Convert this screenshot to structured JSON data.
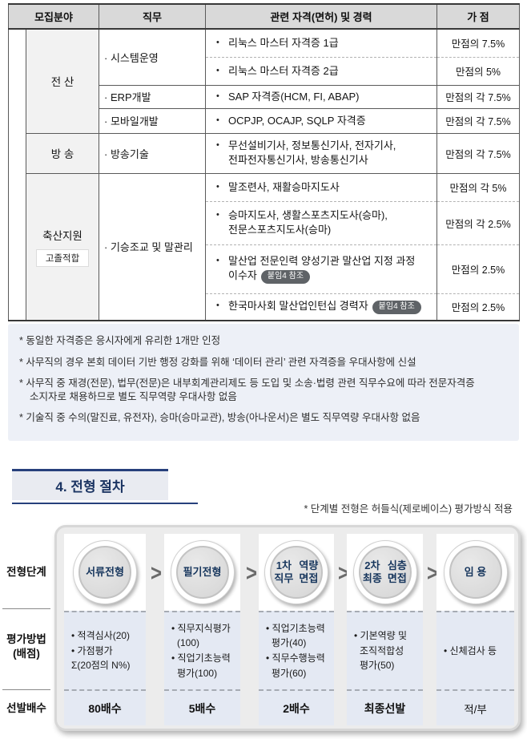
{
  "ui": {
    "bullet": "•",
    "arrow": ">"
  },
  "recruit_table": {
    "headers": [
      "모집분야",
      "직무",
      "관련 자격(면허) 및 경력",
      "가 점"
    ],
    "rows": [
      {
        "category": "전 산",
        "duty": "· 시스템운영",
        "qual": "리눅스 마스터 자격증 1급",
        "bonus": "만점의 7.5%"
      },
      {
        "qual": "리눅스 마스터 자격증 2급",
        "bonus": "만점의 5%"
      },
      {
        "duty": "· ERP개발",
        "qual": "SAP 자격증(HCM, FI, ABAP)",
        "bonus": "만점의 각 7.5%"
      },
      {
        "duty": "· 모바일개발",
        "qual": "OCPJP, OCAJP, SQLP 자격증",
        "bonus": "만점의 각 7.5%"
      },
      {
        "category": "방 송",
        "duty": "· 방송기술",
        "qual": "무선설비기사, 정보통신기사, 전자기사, 전파전자통신기사, 방송통신기사",
        "bonus": "만점의 각 7.5%"
      },
      {
        "category": "축산지원",
        "category_badge": "고졸적합",
        "duty": "· 기승조교 및 말관리",
        "qual": "말조련사, 재활승마지도사",
        "bonus": "만점의 각 5%"
      },
      {
        "qual": "승마지도사, 생활스포츠지도사(승마), 전문스포츠지도사(승마)",
        "bonus": "만점의 각 2.5%"
      },
      {
        "qual": "말산업 전문인력 양성기관 말산업 지정 과정 이수자",
        "qual_badge": "붙임4 참조",
        "bonus": "만점의 2.5%"
      },
      {
        "qual": "한국마사회 말산업인턴십 경력자",
        "qual_badge": "붙임4 참조",
        "bonus": "만점의 2.5%"
      }
    ]
  },
  "notes": {
    "items": [
      "* 동일한 자격증은 응시자에게 유리한 1개만 인정",
      "* 사무직의 경우 본회 데이터 기반 행정 강화를 위해 ‘데이터 관리’ 관련 자격증을 우대사항에 신설",
      "* 사무직 중 재경(전문), 법무(전문)은 내부회계관리제도 등 도입 및 소송·법령 관련 직무수요에 따라 전문자격증 소지자로 채용하므로 별도 직무역량 우대사항 없음",
      "* 기술직 중 수의(말진료, 유전자), 승마(승마교관), 방송(아나운서)은 별도 직무역량 우대사항 없음"
    ]
  },
  "section": {
    "title": "4. 전형 절차",
    "note": "* 단계별 전형은 허들식(제로베이스) 평가방식 적용"
  },
  "process": {
    "labels": {
      "stage": "전형단계",
      "method_line1": "평가방법",
      "method_line2": "(배점)",
      "multiple": "선발배수"
    },
    "stages": [
      {
        "name_lines": [
          "서류전형"
        ],
        "eval_lines": [
          "• 적격심사(20)",
          "• 가점평가",
          "Σ(20점의 N%)"
        ],
        "multiple": "80배수"
      },
      {
        "name_lines": [
          "필기전형"
        ],
        "eval_lines": [
          "• 직무지식평가",
          "(100)",
          "• 직업기초능력",
          "평가(100)"
        ],
        "multiple": "5배수"
      },
      {
        "name_lines": [
          "1차 직무",
          "역량면접"
        ],
        "eval_lines": [
          "• 직업기초능력",
          "평가(40)",
          "• 직무수행능력",
          "평가(60)"
        ],
        "multiple": "2배수"
      },
      {
        "name_lines": [
          "2차 최종",
          "심층면접"
        ],
        "eval_lines": [
          "• 기본역량 및",
          "조직적합성",
          "평가(50)"
        ],
        "multiple": "최종선발"
      },
      {
        "name_lines": [
          "임 용"
        ],
        "eval_lines": [
          "• 신체검사 등"
        ],
        "multiple": "적/부"
      }
    ]
  },
  "colors": {
    "accent_navy": "#1c3563",
    "header_gray": "#d9d9d9",
    "badge_gray": "#5f6367",
    "notes_bg": "#edf0f7",
    "eval_bg": "#e4e9f3"
  }
}
